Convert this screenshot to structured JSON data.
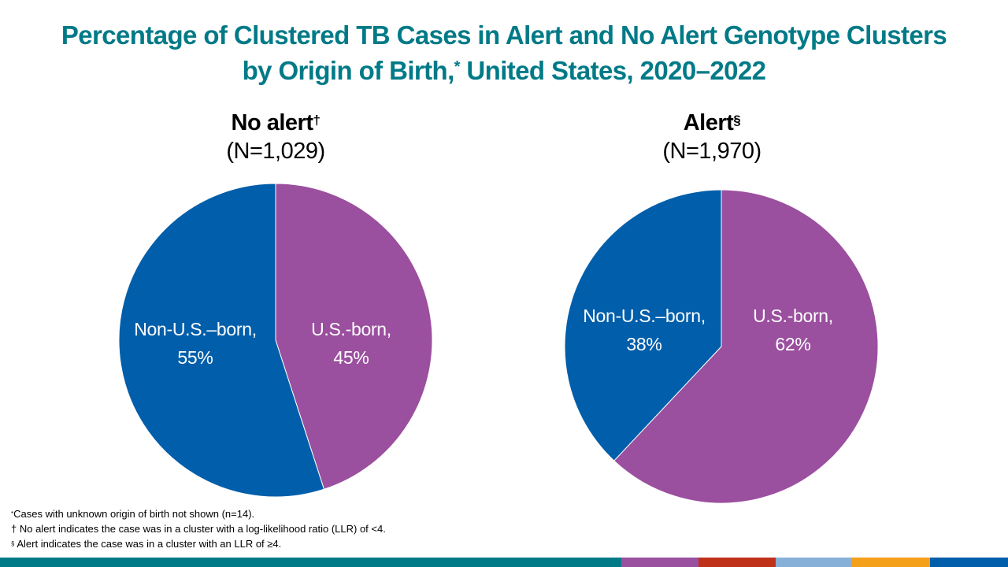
{
  "title": {
    "line1": "Percentage of Clustered TB Cases in Alert and No Alert Genotype Clusters",
    "line2_a": "by Origin of Birth,",
    "line2_mark": "*",
    "line2_b": " United States, 2020–2022"
  },
  "chart_data": [
    {
      "type": "pie",
      "title": "No alert",
      "title_mark": "†",
      "subtitle": "(N=1,029)",
      "slices": [
        {
          "label": "U.S.-born,",
          "pct_label": "45%",
          "value": 45,
          "color": "#9b4f9f"
        },
        {
          "label": "Non-U.S.–born,",
          "pct_label": "55%",
          "value": 55,
          "color": "#005eaa"
        }
      ]
    },
    {
      "type": "pie",
      "title": "Alert",
      "title_mark": "§",
      "subtitle": "(N=1,970)",
      "slices": [
        {
          "label": "U.S.-born,",
          "pct_label": "62%",
          "value": 62,
          "color": "#9b4f9f"
        },
        {
          "label": "Non-U.S.–born,",
          "pct_label": "38%",
          "value": 38,
          "color": "#005eaa"
        }
      ]
    }
  ],
  "footnotes": [
    {
      "mark": "*",
      "text": "Cases with unknown  origin of birth not shown (n=14)."
    },
    {
      "mark": "†",
      "text": " No alert indicates the case was in a cluster with  a log-likelihood ratio (LLR) of <4."
    },
    {
      "mark": "§",
      "text": " Alert indicates the case was in a cluster with an LLR of ≥4."
    }
  ],
  "footer_colors": [
    "#007a87",
    "#9b4f9f",
    "#c0311a",
    "#86b0d8",
    "#f5a01a",
    "#005eaa"
  ]
}
